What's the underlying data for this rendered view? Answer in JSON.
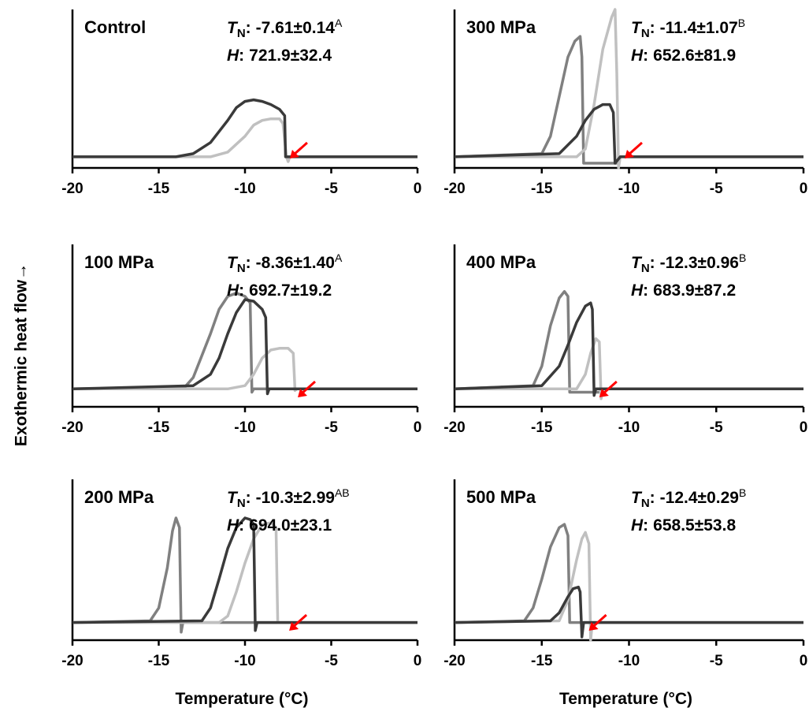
{
  "figure": {
    "ylabel": "Exothermic heat flow→",
    "symbols": {
      "t": "T",
      "t_sub": "N",
      "h": "H",
      "colon": ":"
    }
  },
  "chart_data": [
    {
      "type": "line",
      "title": "Control",
      "tn": "-7.61±0.14",
      "tn_group": "A",
      "h": "721.9±32.4",
      "xlim": [
        -20,
        0
      ],
      "xticks": [
        -20,
        -15,
        -10,
        -5,
        0
      ],
      "ylim": [
        0,
        1
      ],
      "arrow_x": -7.4,
      "arrow_color": "#ff0000",
      "series": [
        {
          "color": "#c0c0c0",
          "x": [
            -20,
            -12,
            -11,
            -10,
            -9.5,
            -9,
            -8.5,
            -8,
            -7.8,
            -7.6,
            -7.5,
            -7.4,
            0
          ],
          "values": [
            0.07,
            0.07,
            0.1,
            0.2,
            0.27,
            0.3,
            0.31,
            0.31,
            0.28,
            0.07,
            0.04,
            0.07,
            0.07
          ]
        },
        {
          "color": "#3a3a3a",
          "x": [
            -20,
            -14,
            -13,
            -12,
            -11,
            -10.5,
            -10,
            -9.5,
            -9,
            -8.5,
            -8,
            -7.7,
            -7.65,
            -7.6,
            0
          ],
          "values": [
            0.07,
            0.07,
            0.09,
            0.16,
            0.3,
            0.38,
            0.42,
            0.43,
            0.42,
            0.4,
            0.37,
            0.33,
            0.07,
            0.07,
            0.07
          ]
        }
      ]
    },
    {
      "type": "line",
      "title": "300 MPa",
      "tn": "-11.4±1.07",
      "tn_group": "B",
      "h": "652.6±81.9",
      "xlim": [
        -20,
        0
      ],
      "xticks": [
        -20,
        -15,
        -10,
        -5,
        0
      ],
      "ylim": [
        0,
        1
      ],
      "arrow_x": -10.25,
      "arrow_color": "#ff0000",
      "series": [
        {
          "color": "#808080",
          "x": [
            -20,
            -15,
            -14.5,
            -14,
            -13.5,
            -13.1,
            -12.8,
            -12.7,
            -12.6,
            -10.6
          ],
          "values": [
            0.07,
            0.09,
            0.2,
            0.45,
            0.7,
            0.8,
            0.83,
            0.7,
            0.03,
            0.03
          ]
        },
        {
          "color": "#c0c0c0",
          "x": [
            -20,
            -13,
            -12.5,
            -12,
            -11.5,
            -11,
            -10.8,
            -10.7,
            -10.6,
            -10.5,
            0
          ],
          "values": [
            0.07,
            0.07,
            0.12,
            0.4,
            0.75,
            0.95,
            1.0,
            0.6,
            0.0,
            0.07,
            0.07
          ]
        },
        {
          "color": "#3a3a3a",
          "x": [
            -20,
            -14,
            -13,
            -12.5,
            -12,
            -11.5,
            -11.1,
            -10.9,
            -10.8,
            -10.5,
            0
          ],
          "values": [
            0.07,
            0.09,
            0.2,
            0.3,
            0.37,
            0.4,
            0.4,
            0.35,
            0.03,
            0.07,
            0.07
          ]
        }
      ]
    },
    {
      "type": "line",
      "title": "100 MPa",
      "tn": "-8.36±1.40",
      "tn_group": "A",
      "h": "692.7±19.2",
      "xlim": [
        -20,
        0
      ],
      "xticks": [
        -20,
        -15,
        -10,
        -5,
        0
      ],
      "ylim": [
        0,
        1
      ],
      "arrow_x": -6.94,
      "arrow_color": "#ff0000",
      "series": [
        {
          "color": "#808080",
          "x": [
            -20,
            -13.5,
            -13,
            -12,
            -11.5,
            -11,
            -10.5,
            -10,
            -9.7,
            -9.6,
            -9.5,
            0
          ],
          "values": [
            0.11,
            0.12,
            0.18,
            0.45,
            0.6,
            0.68,
            0.7,
            0.68,
            0.64,
            0.09,
            0.11,
            0.11
          ]
        },
        {
          "color": "#c0c0c0",
          "x": [
            -20,
            -11,
            -10,
            -9.5,
            -9,
            -8.5,
            -8,
            -7.5,
            -7.2,
            -7.1,
            -7,
            0
          ],
          "values": [
            0.11,
            0.11,
            0.13,
            0.2,
            0.3,
            0.35,
            0.36,
            0.36,
            0.33,
            0.1,
            0.11,
            0.11
          ]
        },
        {
          "color": "#3a3a3a",
          "x": [
            -20,
            -13,
            -12,
            -11.5,
            -11,
            -10.5,
            -10,
            -9.5,
            -9,
            -8.8,
            -8.7,
            -8.6,
            0
          ],
          "values": [
            0.11,
            0.13,
            0.2,
            0.3,
            0.45,
            0.58,
            0.66,
            0.65,
            0.6,
            0.55,
            0.08,
            0.11,
            0.11
          ]
        }
      ]
    },
    {
      "type": "line",
      "title": "400 MPa",
      "tn": "-12.3±0.96",
      "tn_group": "B",
      "h": "683.9±87.2",
      "xlim": [
        -20,
        0
      ],
      "xticks": [
        -20,
        -15,
        -10,
        -5,
        0
      ],
      "ylim": [
        0,
        1
      ],
      "arrow_x": -11.7,
      "arrow_color": "#ff0000",
      "series": [
        {
          "color": "#808080",
          "x": [
            -20,
            -15.5,
            -15,
            -14.5,
            -14,
            -13.7,
            -13.5,
            -13.4,
            -11.7
          ],
          "values": [
            0.11,
            0.13,
            0.25,
            0.5,
            0.67,
            0.71,
            0.68,
            0.09,
            0.09
          ]
        },
        {
          "color": "#c0c0c0",
          "x": [
            -20,
            -13,
            -12.5,
            -12.2,
            -11.9,
            -11.7,
            -11.6,
            -11.5,
            0
          ],
          "values": [
            0.11,
            0.11,
            0.2,
            0.33,
            0.42,
            0.4,
            0.05,
            0.11,
            0.11
          ]
        },
        {
          "color": "#3a3a3a",
          "x": [
            -20,
            -15,
            -14,
            -13.5,
            -13,
            -12.5,
            -12.2,
            -12.1,
            -12,
            -11.9,
            0
          ],
          "values": [
            0.11,
            0.13,
            0.25,
            0.38,
            0.52,
            0.62,
            0.64,
            0.6,
            0.07,
            0.11,
            0.11
          ]
        }
      ]
    },
    {
      "type": "line",
      "title": "200 MPa",
      "tn": "-10.3±2.99",
      "tn_group": "AB",
      "h": "694.0±23.1",
      "xlabel": "Temperature (°C)",
      "xlim": [
        -20,
        0
      ],
      "xticks": [
        -20,
        -15,
        -10,
        -5,
        0
      ],
      "ylim": [
        0,
        1
      ],
      "arrow_x": -7.44,
      "arrow_color": "#ff0000",
      "series": [
        {
          "color": "#808080",
          "x": [
            -20,
            -15.5,
            -15,
            -14.5,
            -14.2,
            -14,
            -13.8,
            -13.7,
            -13.6,
            0
          ],
          "values": [
            0.11,
            0.12,
            0.2,
            0.45,
            0.68,
            0.76,
            0.7,
            0.05,
            0.11,
            0.11
          ]
        },
        {
          "color": "#c0c0c0",
          "x": [
            -20,
            -11.5,
            -11,
            -10.5,
            -10,
            -9.5,
            -9,
            -8.5,
            -8.2,
            -8.1,
            -8,
            0
          ],
          "values": [
            0.11,
            0.11,
            0.15,
            0.3,
            0.48,
            0.63,
            0.72,
            0.73,
            0.7,
            0.11,
            0.11,
            0.11
          ]
        },
        {
          "color": "#3a3a3a",
          "x": [
            -20,
            -12.5,
            -12,
            -11.5,
            -11,
            -10.5,
            -10,
            -9.7,
            -9.5,
            -9.4,
            -9.3,
            0
          ],
          "values": [
            0.11,
            0.12,
            0.2,
            0.38,
            0.57,
            0.7,
            0.76,
            0.75,
            0.72,
            0.06,
            0.11,
            0.11
          ]
        }
      ]
    },
    {
      "type": "line",
      "title": "500 MPa",
      "tn": "-12.4±0.29",
      "tn_group": "B",
      "h": "658.5±53.8",
      "xlabel": "Temperature (°C)",
      "xlim": [
        -20,
        0
      ],
      "xticks": [
        -20,
        -15,
        -10,
        -5,
        0
      ],
      "ylim": [
        0,
        1
      ],
      "arrow_x": -12.3,
      "arrow_color": "#ff0000",
      "series": [
        {
          "color": "#808080",
          "x": [
            -20,
            -16,
            -15.5,
            -15,
            -14.5,
            -14,
            -13.7,
            -13.5,
            -13.4,
            0
          ],
          "values": [
            0.11,
            0.12,
            0.2,
            0.38,
            0.58,
            0.7,
            0.72,
            0.65,
            0.11,
            0.11
          ]
        },
        {
          "color": "#c0c0c0",
          "x": [
            -20,
            -14,
            -13.5,
            -13,
            -12.7,
            -12.5,
            -12.3,
            -12.2,
            -12.1,
            0
          ],
          "values": [
            0.11,
            0.12,
            0.25,
            0.5,
            0.63,
            0.67,
            0.6,
            0.0,
            0.11,
            0.11
          ]
        },
        {
          "color": "#3a3a3a",
          "x": [
            -20,
            -14.5,
            -14,
            -13.5,
            -13.2,
            -12.9,
            -12.8,
            -12.7,
            -12.6,
            0
          ],
          "values": [
            0.11,
            0.12,
            0.17,
            0.27,
            0.32,
            0.33,
            0.3,
            0.02,
            0.11,
            0.11
          ]
        }
      ]
    }
  ]
}
